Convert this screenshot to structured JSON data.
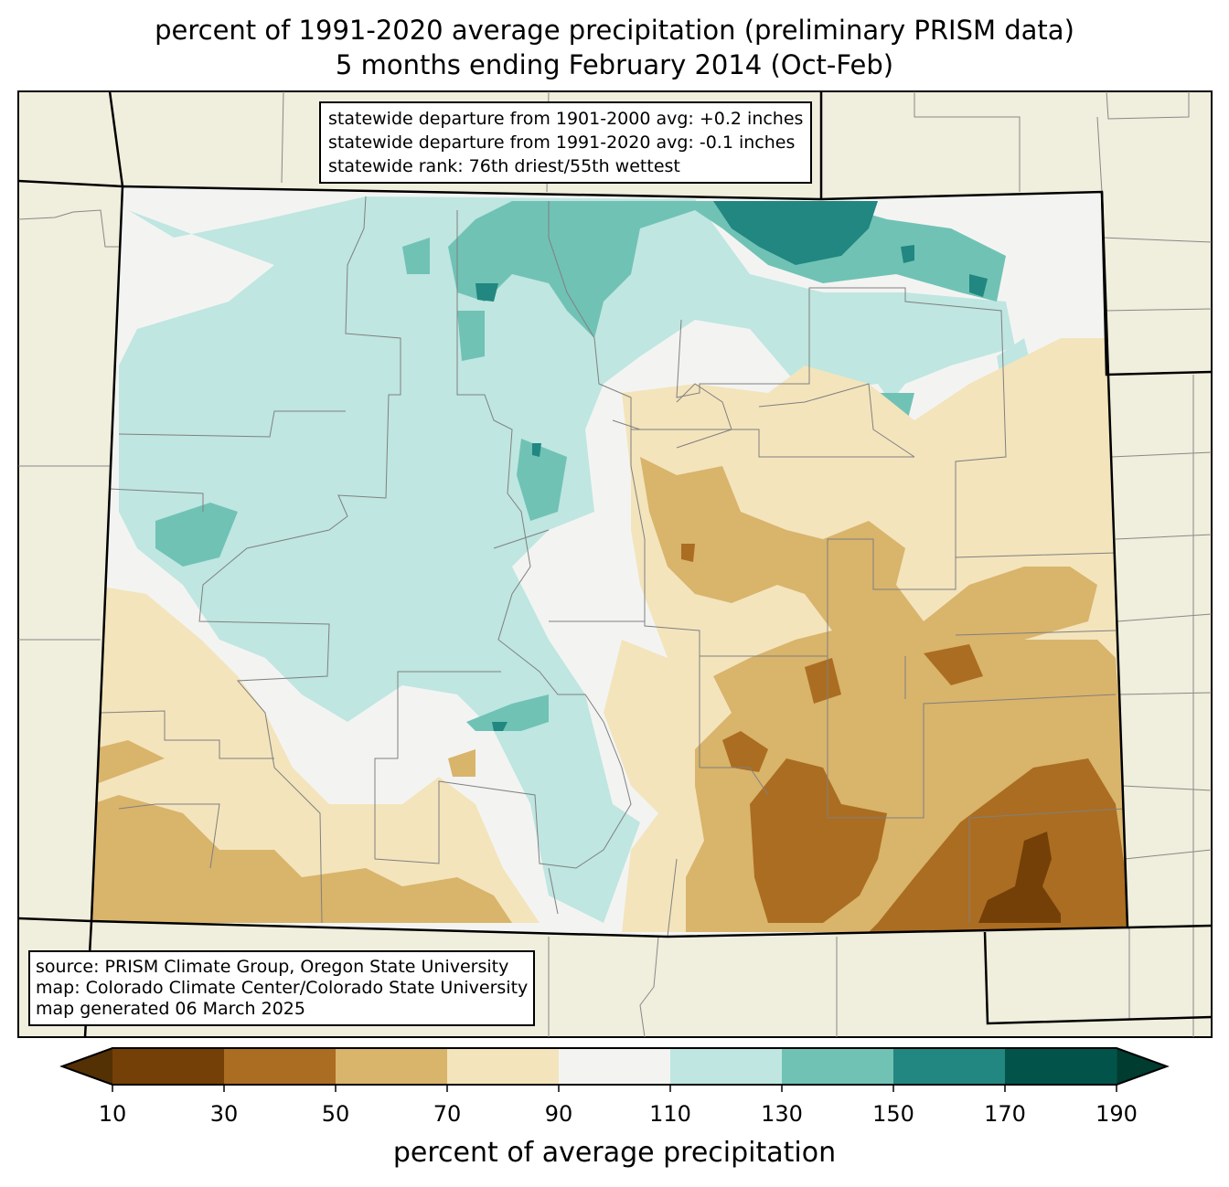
{
  "title": {
    "line1": "percent of 1991-2020 average precipitation (preliminary PRISM data)",
    "line2": "5 months ending February 2014 (Oct-Feb)"
  },
  "stats_box": {
    "line1": "statewide departure from 1901-2000 avg: +0.2 inches",
    "line2": "statewide departure from 1991-2020 avg: -0.1 inches",
    "line3": "statewide rank: 76th driest/55th wettest"
  },
  "source_box": {
    "line1": "source: PRISM Climate Group, Oregon State University",
    "line2": "map: Colorado Climate Center/Colorado State University",
    "line3": "map generated 06 March 2025"
  },
  "colorbar": {
    "label": "percent of average precipitation",
    "ticks": [
      "10",
      "30",
      "50",
      "70",
      "90",
      "110",
      "130",
      "150",
      "170",
      "190"
    ],
    "colors": [
      "#744008",
      "#ab6d21",
      "#d9b46b",
      "#f3e4bc",
      "#f3f4f2",
      "#bfe6e1",
      "#70c2b5",
      "#218780",
      "#02544a"
    ],
    "extend_low_color": "#543005",
    "extend_high_color": "#003c30"
  },
  "map_colors": {
    "background": "#f0eedc",
    "county_lines": "#808080"
  }
}
